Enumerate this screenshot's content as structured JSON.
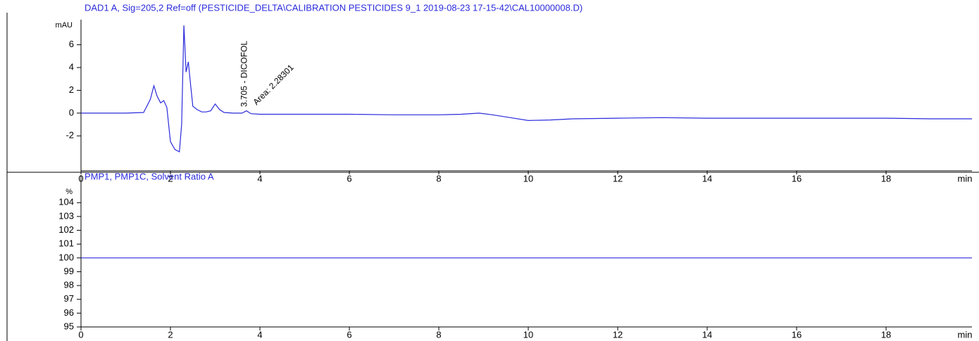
{
  "chart_data": [
    {
      "type": "line",
      "title": "DAD1 A, Sig=205,2 Ref=off (PESTICIDE_DELTA\\CALIBRATION PESTICIDES 9_1 2019-08-23 17-15-42\\CAL10000008.D)",
      "ylabel": "mAU",
      "xlabel": "min",
      "annotations": [
        "3.705 - DICOFOL",
        "Area: 2.28301"
      ],
      "x": [
        0,
        0.5,
        1.0,
        1.4,
        1.55,
        1.63,
        1.7,
        1.78,
        1.85,
        1.92,
        2.0,
        2.1,
        2.2,
        2.25,
        2.3,
        2.35,
        2.4,
        2.45,
        2.5,
        2.6,
        2.7,
        2.8,
        2.9,
        3.0,
        3.1,
        3.2,
        3.4,
        3.6,
        3.7,
        3.8,
        4,
        5,
        6,
        7,
        8,
        8.5,
        8.9,
        9.2,
        9.6,
        10,
        10.5,
        11,
        12,
        13,
        14,
        15,
        16,
        17,
        18,
        19,
        19.92
      ],
      "values": [
        0,
        0,
        0,
        0.05,
        1.2,
        2.4,
        1.5,
        0.9,
        1.1,
        0.5,
        -2.5,
        -3.2,
        -3.4,
        -1,
        7.7,
        3.6,
        4.5,
        2.5,
        0.6,
        0.3,
        0.1,
        0.1,
        0.2,
        0.8,
        0.3,
        0.05,
        0,
        0,
        0.2,
        -0.05,
        -0.1,
        -0.1,
        -0.1,
        -0.15,
        -0.15,
        -0.1,
        0,
        -0.15,
        -0.4,
        -0.65,
        -0.6,
        -0.5,
        -0.45,
        -0.4,
        -0.45,
        -0.45,
        -0.45,
        -0.45,
        -0.45,
        -0.5,
        -0.5
      ],
      "color": "#2b2bdc",
      "xlim": [
        0,
        19.92
      ],
      "xticks": [
        0,
        2,
        4,
        6,
        8,
        10,
        12,
        14,
        16,
        18
      ],
      "ylim": [
        -5.07,
        8.2
      ],
      "yticks": [
        -2,
        0,
        2,
        4,
        6
      ]
    },
    {
      "type": "line",
      "title": "PMP1, PMP1C, Solvent Ratio A",
      "ylabel": "%",
      "xlabel": "min",
      "x": [
        0,
        19.92
      ],
      "values": [
        100,
        100
      ],
      "color": "#2b2bdc",
      "xlim": [
        0,
        19.92
      ],
      "xticks": [
        0,
        2,
        4,
        6,
        8,
        10,
        12,
        14,
        16,
        18
      ],
      "ylim": [
        95,
        106
      ],
      "yticks": [
        95,
        96,
        97,
        98,
        99,
        100,
        101,
        102,
        103,
        104
      ]
    }
  ]
}
